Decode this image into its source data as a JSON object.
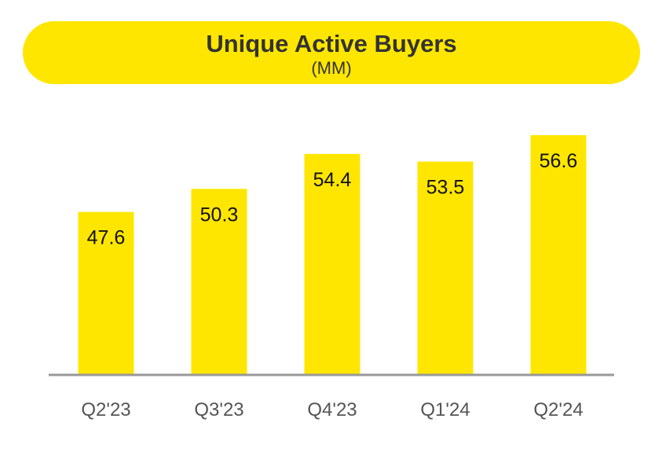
{
  "chart_data": {
    "type": "bar",
    "title": "Unique Active Buyers",
    "subtitle": "(MM)",
    "categories": [
      "Q2'23",
      "Q3'23",
      "Q4'23",
      "Q1'24",
      "Q2'24"
    ],
    "values": [
      47.6,
      50.3,
      54.4,
      53.5,
      56.6
    ],
    "data_labels": [
      "47.6",
      "50.3",
      "54.4",
      "53.5",
      "56.6"
    ],
    "xlabel": "",
    "ylabel": "",
    "ylim": [
      28.5,
      57.7
    ],
    "grid": false,
    "legend": "none",
    "colors": {
      "bar": "#FFE600",
      "title_bg": "#FFE600",
      "axis": "#999999",
      "text": "#333333"
    }
  }
}
